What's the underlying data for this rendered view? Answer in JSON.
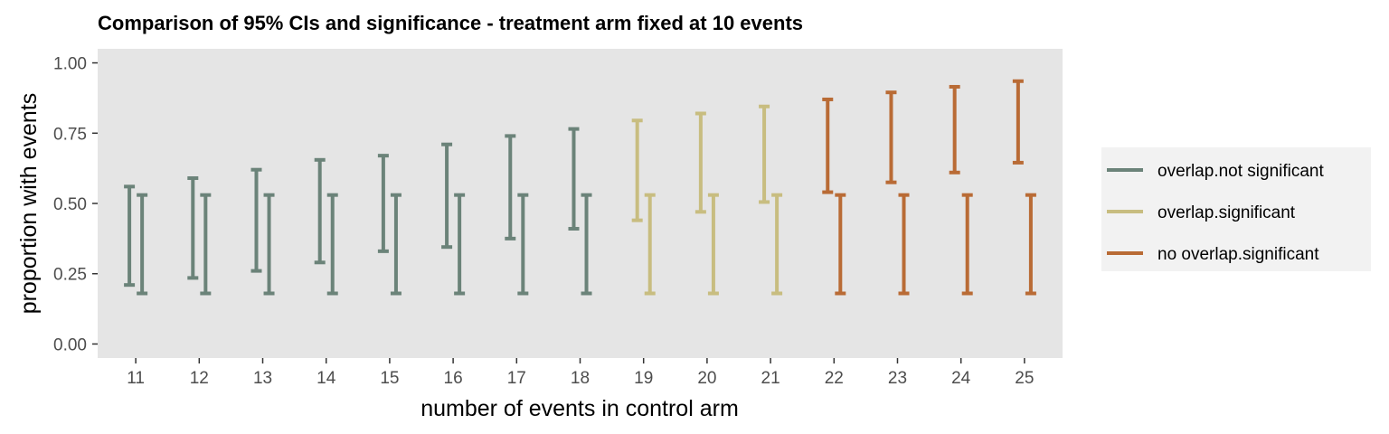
{
  "chart_data": {
    "type": "errorbar",
    "title": "Comparison of 95% CIs and significance - treatment arm fixed at 10 events",
    "xlabel": "number of events in control arm",
    "ylabel": "proportion with events",
    "categories": [
      "11",
      "12",
      "13",
      "14",
      "15",
      "16",
      "17",
      "18",
      "19",
      "20",
      "21",
      "22",
      "23",
      "24",
      "25"
    ],
    "ylim": [
      -0.05,
      1.05
    ],
    "yticks": [
      0.0,
      0.25,
      0.5,
      0.75,
      1.0
    ],
    "ytick_labels": [
      "0.00",
      "0.25",
      "0.50",
      "0.75",
      "1.00"
    ],
    "grid": false,
    "legend_position": "right",
    "panel_color": "#e5e5e5",
    "legend": [
      {
        "key": "overlap.not significant",
        "label": "overlap.not significant",
        "color": "#6b8379"
      },
      {
        "key": "overlap.significant",
        "label": "overlap.significant",
        "color": "#c8bd80"
      },
      {
        "key": "no overlap.significant",
        "label": "no overlap.significant",
        "color": "#b96b35"
      }
    ],
    "control_arm_ci": [
      {
        "x": "11",
        "lower": 0.21,
        "upper": 0.56,
        "group": "overlap.not significant"
      },
      {
        "x": "12",
        "lower": 0.235,
        "upper": 0.59,
        "group": "overlap.not significant"
      },
      {
        "x": "13",
        "lower": 0.26,
        "upper": 0.62,
        "group": "overlap.not significant"
      },
      {
        "x": "14",
        "lower": 0.29,
        "upper": 0.655,
        "group": "overlap.not significant"
      },
      {
        "x": "15",
        "lower": 0.33,
        "upper": 0.67,
        "group": "overlap.not significant"
      },
      {
        "x": "16",
        "lower": 0.345,
        "upper": 0.71,
        "group": "overlap.not significant"
      },
      {
        "x": "17",
        "lower": 0.375,
        "upper": 0.74,
        "group": "overlap.not significant"
      },
      {
        "x": "18",
        "lower": 0.41,
        "upper": 0.765,
        "group": "overlap.not significant"
      },
      {
        "x": "19",
        "lower": 0.44,
        "upper": 0.795,
        "group": "overlap.significant"
      },
      {
        "x": "20",
        "lower": 0.47,
        "upper": 0.82,
        "group": "overlap.significant"
      },
      {
        "x": "21",
        "lower": 0.505,
        "upper": 0.845,
        "group": "overlap.significant"
      },
      {
        "x": "22",
        "lower": 0.54,
        "upper": 0.87,
        "group": "no overlap.significant"
      },
      {
        "x": "23",
        "lower": 0.575,
        "upper": 0.895,
        "group": "no overlap.significant"
      },
      {
        "x": "24",
        "lower": 0.61,
        "upper": 0.915,
        "group": "no overlap.significant"
      },
      {
        "x": "25",
        "lower": 0.645,
        "upper": 0.935,
        "group": "no overlap.significant"
      }
    ],
    "treatment_arm_ci": {
      "lower": 0.18,
      "upper": 0.53
    }
  }
}
